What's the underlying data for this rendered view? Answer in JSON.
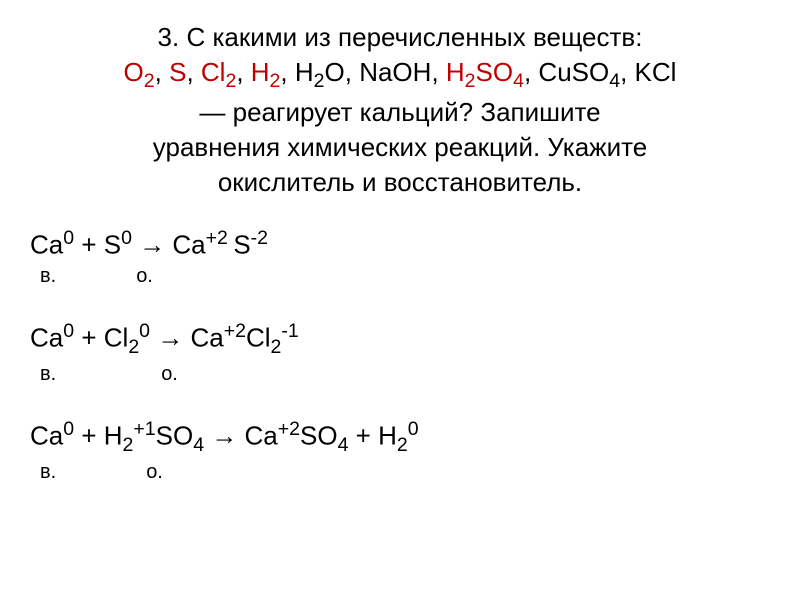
{
  "header": {
    "line1_prefix": "3. С какими из перечисленных веществ:",
    "formulas": {
      "o2_base": "O",
      "o2_sub": "2",
      "s": "S",
      "cl2_base": "Cl",
      "cl2_sub": "2",
      "h2_base": "H",
      "h2_sub": "2",
      "h2o_h": "H",
      "h2o_sub": "2",
      "h2o_o": "O",
      "naoh": "NaOH",
      "h2so4_h": "H",
      "h2so4_sub2": "2",
      "h2so4_so": "SO",
      "h2so4_sub4": "4",
      "cuso4_cu": "CuSO",
      "cuso4_sub": "4",
      "kcl": "KCl"
    },
    "line3": "— реагирует кальций? Запишите",
    "line4": "уравнения химических реакций. Укажите",
    "line5": "окислитель и восстановитель."
  },
  "eq1": {
    "ca": "Ca",
    "ca_sup": "0",
    "plus1": " + ",
    "s": "S",
    "s_sup": "0",
    "arrow": " → ",
    "ca2": "Ca",
    "ca2_sup": "+2 ",
    "s2": "S",
    "s2_sup": "-2",
    "label_v": "в.",
    "label_o": "о."
  },
  "eq2": {
    "ca": "Ca",
    "ca_sup": "0",
    "plus1": " + ",
    "cl": "Cl",
    "cl_sub": "2",
    "cl_sup": "0",
    "arrow": " → ",
    "ca2": "Ca",
    "ca2_sup": "+2",
    "cl2": "Cl",
    "cl2_sub": "2",
    "cl2_sup": "-1",
    "label_v": "в.",
    "label_o": "о."
  },
  "eq3": {
    "ca": "Ca",
    "ca_sup": "0",
    "plus1": " + ",
    "h": "H",
    "h_sub": "2",
    "h_sup": "+1",
    "so": "SO",
    "so_sub": "4",
    "arrow": " → ",
    "ca2": "Ca",
    "ca2_sup": "+2",
    "so2": "SO",
    "so2_sub": "4",
    "plus2": " + ",
    "h2": "H",
    "h2_sub": "2",
    "h2_sup": "0",
    "label_v": "в.",
    "label_o": "о."
  },
  "colors": {
    "red": "#c00000",
    "black": "#000000",
    "bg": "#ffffff"
  },
  "fontsizes": {
    "header": 26,
    "equation": 26,
    "labels": 20
  }
}
